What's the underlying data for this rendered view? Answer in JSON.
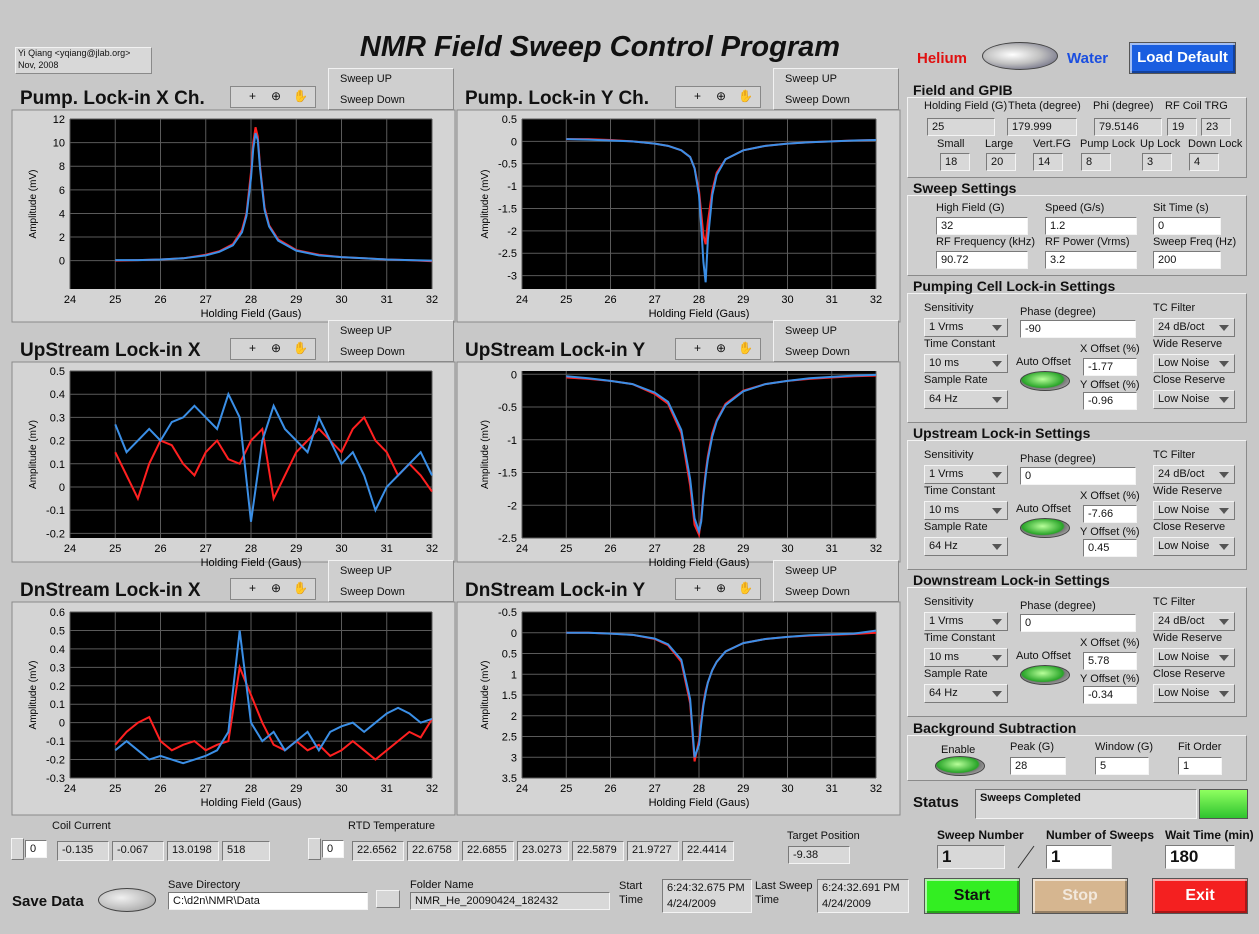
{
  "header": {
    "title": "NMR Field Sweep Control Program",
    "author": "Yi Qiang <yqiang@jlab.org>",
    "date": "Nov, 2008"
  },
  "mode": {
    "left": "Helium",
    "right": "Water",
    "load_default": "Load Default"
  },
  "plots": [
    {
      "type": "line",
      "title": "Pump. Lock-in X Ch.",
      "x_label": "Holding Field (Gaus)",
      "y_label": "Amplitude (mV)",
      "grid": true,
      "xlim": [
        24,
        32
      ],
      "xticks": [
        24,
        25,
        26,
        27,
        28,
        29,
        30,
        31,
        32
      ],
      "ylim": [
        -2.4,
        12
      ],
      "yticks": [
        0,
        2,
        4,
        6,
        8,
        10,
        12
      ],
      "x": [
        25,
        25.5,
        26,
        26.5,
        27,
        27.3,
        27.6,
        27.8,
        27.9,
        28,
        28.05,
        28.1,
        28.15,
        28.2,
        28.3,
        28.4,
        28.6,
        29,
        29.5,
        30,
        30.5,
        31,
        31.5,
        32
      ],
      "series": [
        {
          "name": "Sweep UP",
          "color": "#ff2020",
          "values": [
            0,
            0.05,
            0.1,
            0.2,
            0.5,
            0.8,
            1.4,
            2.6,
            4,
            7.5,
            10,
            11.3,
            10.5,
            8,
            4.5,
            3,
            1.8,
            0.9,
            0.5,
            0.3,
            0.2,
            0.1,
            0.05,
            -0.05
          ]
        },
        {
          "name": "Sweep Down",
          "color": "#3b8fe6",
          "values": [
            0.05,
            0.05,
            0.1,
            0.2,
            0.45,
            0.75,
            1.3,
            2.4,
            3.8,
            7,
            9.5,
            10.8,
            10.2,
            7.8,
            4.3,
            2.9,
            1.7,
            0.85,
            0.45,
            0.3,
            0.2,
            0.1,
            0.05,
            0
          ]
        }
      ]
    },
    {
      "type": "line",
      "title": "Pump. Lock-in Y Ch.",
      "x_label": "Holding Field (Gaus)",
      "y_label": "Amplitude (mV)",
      "grid": true,
      "xlim": [
        24,
        32
      ],
      "xticks": [
        24,
        25,
        26,
        27,
        28,
        29,
        30,
        31,
        32
      ],
      "ylim": [
        -3.3,
        0.5
      ],
      "yticks": [
        -3,
        -2.5,
        -2,
        -1.5,
        -1,
        -0.5,
        0,
        0.5
      ],
      "x": [
        25,
        25.5,
        26,
        26.5,
        27,
        27.3,
        27.6,
        27.8,
        27.9,
        28,
        28.05,
        28.1,
        28.15,
        28.2,
        28.3,
        28.4,
        28.6,
        29,
        29.5,
        30,
        30.5,
        31,
        31.5,
        32
      ],
      "series": [
        {
          "name": "Sweep UP",
          "color": "#ff2020",
          "values": [
            0.05,
            0.05,
            0.03,
            0,
            -0.05,
            -0.1,
            -0.2,
            -0.35,
            -0.6,
            -1.1,
            -1.6,
            -2.1,
            -2.3,
            -1.8,
            -1.1,
            -0.7,
            -0.4,
            -0.2,
            -0.1,
            -0.05,
            -0.02,
            0,
            0.02,
            0.03
          ]
        },
        {
          "name": "Sweep Down",
          "color": "#3b8fe6",
          "values": [
            0.05,
            0.04,
            0.02,
            0,
            -0.05,
            -0.1,
            -0.2,
            -0.35,
            -0.6,
            -1.2,
            -1.9,
            -2.7,
            -3.15,
            -2.2,
            -1.2,
            -0.75,
            -0.4,
            -0.2,
            -0.1,
            -0.05,
            -0.02,
            0,
            0.02,
            0.03
          ]
        }
      ]
    },
    {
      "type": "line",
      "title": "UpStream Lock-in X",
      "x_label": "Holding Field (Gaus)",
      "y_label": "Amplitude (mV)",
      "grid": true,
      "xlim": [
        24,
        32
      ],
      "xticks": [
        24,
        25,
        26,
        27,
        28,
        29,
        30,
        31,
        32
      ],
      "ylim": [
        -0.22,
        0.5
      ],
      "yticks": [
        -0.2,
        -0.1,
        0,
        0.1,
        0.2,
        0.3,
        0.4,
        0.5
      ],
      "x": [
        25,
        25.25,
        25.5,
        25.75,
        26,
        26.25,
        26.5,
        26.75,
        27,
        27.25,
        27.5,
        27.75,
        28,
        28.25,
        28.5,
        28.75,
        29,
        29.25,
        29.5,
        29.75,
        30,
        30.25,
        30.5,
        30.75,
        31,
        31.25,
        31.5,
        31.75,
        32
      ],
      "series": [
        {
          "name": "Sweep UP",
          "color": "#ff2020",
          "values": [
            0.15,
            0.05,
            -0.05,
            0.1,
            0.2,
            0.18,
            0.1,
            0.05,
            0.15,
            0.2,
            0.12,
            0.1,
            0.2,
            0.25,
            -0.05,
            0.05,
            0.15,
            0.2,
            0.25,
            0.2,
            0.15,
            0.25,
            0.3,
            0.2,
            0.15,
            0.05,
            0.1,
            0.05,
            -0.02
          ]
        },
        {
          "name": "Sweep Down",
          "color": "#3b8fe6",
          "values": [
            0.27,
            0.15,
            0.2,
            0.25,
            0.2,
            0.28,
            0.3,
            0.35,
            0.3,
            0.25,
            0.4,
            0.3,
            -0.15,
            0.2,
            0.35,
            0.25,
            0.2,
            0.15,
            0.3,
            0.2,
            0.1,
            0.15,
            0.05,
            -0.1,
            0,
            0.05,
            0.1,
            0.15,
            0.05
          ]
        }
      ]
    },
    {
      "type": "line",
      "title": "UpStream Lock-in Y",
      "x_label": "Holding Field (Gaus)",
      "y_label": "Amplitude (mV)",
      "grid": true,
      "xlim": [
        24,
        32
      ],
      "xticks": [
        24,
        25,
        26,
        27,
        28,
        29,
        30,
        31,
        32
      ],
      "ylim": [
        -2.5,
        0.05
      ],
      "yticks": [
        -2.5,
        -2,
        -1.5,
        -1,
        -0.5,
        0
      ],
      "x": [
        25,
        25.5,
        26,
        26.5,
        27,
        27.3,
        27.6,
        27.8,
        27.9,
        28,
        28.05,
        28.1,
        28.15,
        28.2,
        28.3,
        28.4,
        28.6,
        29,
        29.5,
        30,
        30.5,
        31,
        31.5,
        32
      ],
      "series": [
        {
          "name": "Sweep UP",
          "color": "#ff2020",
          "values": [
            -0.05,
            -0.07,
            -0.1,
            -0.15,
            -0.3,
            -0.45,
            -0.9,
            -1.7,
            -2.3,
            -2.45,
            -2.2,
            -1.8,
            -1.5,
            -1.25,
            -0.9,
            -0.7,
            -0.45,
            -0.25,
            -0.15,
            -0.1,
            -0.07,
            -0.05,
            -0.03,
            -0.02
          ]
        },
        {
          "name": "Sweep Down",
          "color": "#3b8fe6",
          "values": [
            -0.03,
            -0.06,
            -0.1,
            -0.15,
            -0.28,
            -0.42,
            -0.85,
            -1.6,
            -2.2,
            -2.4,
            -2.25,
            -1.85,
            -1.55,
            -1.3,
            -0.95,
            -0.72,
            -0.47,
            -0.26,
            -0.15,
            -0.1,
            -0.06,
            -0.04,
            -0.02,
            -0.01
          ]
        }
      ]
    },
    {
      "type": "line",
      "title": "DnStream Lock-in X",
      "x_label": "Holding Field (Gaus)",
      "y_label": "Amplitude (mV)",
      "grid": true,
      "xlim": [
        24,
        32
      ],
      "xticks": [
        24,
        25,
        26,
        27,
        28,
        29,
        30,
        31,
        32
      ],
      "ylim": [
        -0.3,
        0.6
      ],
      "yticks": [
        -0.3,
        -0.2,
        -0.1,
        0,
        0.1,
        0.2,
        0.3,
        0.4,
        0.5,
        0.6
      ],
      "x": [
        25,
        25.25,
        25.5,
        25.75,
        26,
        26.25,
        26.5,
        26.75,
        27,
        27.25,
        27.5,
        27.75,
        28,
        28.25,
        28.5,
        28.75,
        29,
        29.25,
        29.5,
        29.75,
        30,
        30.25,
        30.5,
        30.75,
        31,
        31.25,
        31.5,
        31.75,
        32
      ],
      "series": [
        {
          "name": "Sweep UP",
          "color": "#ff2020",
          "values": [
            -0.12,
            -0.05,
            0,
            0.03,
            -0.1,
            -0.15,
            -0.12,
            -0.1,
            -0.15,
            -0.12,
            -0.1,
            0.3,
            0.15,
            0,
            -0.12,
            -0.15,
            -0.1,
            -0.15,
            -0.12,
            -0.18,
            -0.15,
            -0.1,
            -0.15,
            -0.2,
            -0.15,
            -0.1,
            -0.05,
            -0.08,
            0.02
          ]
        },
        {
          "name": "Sweep Down",
          "color": "#3b8fe6",
          "values": [
            -0.15,
            -0.1,
            -0.15,
            -0.2,
            -0.18,
            -0.2,
            -0.22,
            -0.2,
            -0.18,
            -0.15,
            -0.05,
            0.5,
            0,
            -0.1,
            -0.05,
            -0.15,
            -0.1,
            -0.05,
            -0.15,
            -0.05,
            -0.02,
            0,
            -0.05,
            0,
            0.05,
            0.08,
            0.05,
            0,
            0.02
          ]
        }
      ]
    },
    {
      "type": "line",
      "title": "DnStream Lock-in Y",
      "x_label": "Holding Field (Gaus)",
      "y_label": "Amplitude (mV)",
      "grid": true,
      "xlim": [
        24,
        32
      ],
      "xticks": [
        24,
        25,
        26,
        27,
        28,
        29,
        30,
        31,
        32
      ],
      "ylim": [
        3.5,
        -0.5
      ],
      "yticks": [
        -0.5,
        0,
        0.5,
        1,
        1.5,
        2,
        2.5,
        3,
        3.5
      ],
      "x": [
        25,
        25.5,
        26,
        26.5,
        27,
        27.3,
        27.6,
        27.8,
        27.9,
        28,
        28.05,
        28.1,
        28.15,
        28.2,
        28.3,
        28.4,
        28.6,
        29,
        29.5,
        30,
        30.5,
        31,
        31.5,
        32
      ],
      "series": [
        {
          "name": "Sweep UP",
          "color": "#ff2020",
          "values": [
            0,
            0,
            0.02,
            0.05,
            0.15,
            0.3,
            0.7,
            1.7,
            3.1,
            2.6,
            2.1,
            1.7,
            1.4,
            1.2,
            0.9,
            0.7,
            0.45,
            0.25,
            0.15,
            0.1,
            0.07,
            0.05,
            0.03,
            0
          ]
        },
        {
          "name": "Sweep Down",
          "color": "#3b8fe6",
          "values": [
            0,
            0,
            0.02,
            0.05,
            0.14,
            0.28,
            0.65,
            1.6,
            3,
            2.7,
            2.2,
            1.75,
            1.45,
            1.2,
            0.9,
            0.7,
            0.45,
            0.25,
            0.15,
            0.1,
            0.06,
            0.04,
            0.02,
            -0.05
          ]
        }
      ]
    }
  ],
  "field_gpib": {
    "title": "Field and GPIB",
    "fields": [
      {
        "label": "Holding Field (G)",
        "value": "25"
      },
      {
        "label": "Theta (degree)",
        "value": "179.999"
      },
      {
        "label": "Phi (degree)",
        "value": "79.5146"
      },
      {
        "label": "Small",
        "value": "18"
      },
      {
        "label": "Large",
        "value": "20"
      },
      {
        "label": "Vert.FG",
        "value": "14"
      },
      {
        "label": "Pump Lock",
        "value": "8"
      },
      {
        "label": "Up Lock",
        "value": "3"
      },
      {
        "label": "Down Lock",
        "value": "4"
      }
    ],
    "rf_coil": {
      "label": "RF Coil TRG",
      "values": [
        "19",
        "23"
      ]
    }
  },
  "sweep_settings": {
    "title": "Sweep Settings",
    "fields": [
      {
        "label": "High Field (G)",
        "value": "32"
      },
      {
        "label": "Speed (G/s)",
        "value": "1.2"
      },
      {
        "label": "Sit Time (s)",
        "value": "0"
      },
      {
        "label": "RF Frequency (kHz)",
        "value": "90.72"
      },
      {
        "label": "RF Power (Vrms)",
        "value": "3.2"
      },
      {
        "label": "Sweep Freq (Hz)",
        "value": "200"
      }
    ]
  },
  "lockins": [
    {
      "title": "Pumping Cell Lock-in Settings",
      "sensitivity": {
        "label": "Sensitivity",
        "value": "1 Vrms"
      },
      "time_constant": {
        "label": "Time Constant",
        "value": "10 ms"
      },
      "sample_rate": {
        "label": "Sample Rate",
        "value": "64 Hz"
      },
      "phase": {
        "label": "Phase (degree)",
        "value": "-90"
      },
      "auto_offset": "Auto Offset",
      "x_offset": {
        "label": "X Offset (%)",
        "value": "-1.77"
      },
      "y_offset": {
        "label": "Y Offset (%)",
        "value": "-0.96"
      },
      "tc_filter": {
        "label": "TC Filter",
        "value": "24 dB/oct"
      },
      "wide_reserve": {
        "label": "Wide Reserve",
        "value": "Low Noise"
      },
      "close_reserve": {
        "label": "Close Reserve",
        "value": "Low Noise"
      }
    },
    {
      "title": "Upstream Lock-in Settings",
      "sensitivity": {
        "label": "Sensitivity",
        "value": "1 Vrms"
      },
      "time_constant": {
        "label": "Time Constant",
        "value": "10 ms"
      },
      "sample_rate": {
        "label": "Sample Rate",
        "value": "64 Hz"
      },
      "phase": {
        "label": "Phase (degree)",
        "value": "0"
      },
      "auto_offset": "Auto Offset",
      "x_offset": {
        "label": "X Offset (%)",
        "value": "-7.66"
      },
      "y_offset": {
        "label": "Y Offset (%)",
        "value": "0.45"
      },
      "tc_filter": {
        "label": "TC Filter",
        "value": "24 dB/oct"
      },
      "wide_reserve": {
        "label": "Wide Reserve",
        "value": "Low Noise"
      },
      "close_reserve": {
        "label": "Close Reserve",
        "value": "Low Noise"
      }
    },
    {
      "title": "Downstream Lock-in Settings",
      "sensitivity": {
        "label": "Sensitivity",
        "value": "1 Vrms"
      },
      "time_constant": {
        "label": "Time Constant",
        "value": "10 ms"
      },
      "sample_rate": {
        "label": "Sample Rate",
        "value": "64 Hz"
      },
      "phase": {
        "label": "Phase (degree)",
        "value": "0"
      },
      "auto_offset": "Auto Offset",
      "x_offset": {
        "label": "X Offset (%)",
        "value": "5.78"
      },
      "y_offset": {
        "label": "Y Offset (%)",
        "value": "-0.34"
      },
      "tc_filter": {
        "label": "TC Filter",
        "value": "24 dB/oct"
      },
      "wide_reserve": {
        "label": "Wide Reserve",
        "value": "Low Noise"
      },
      "close_reserve": {
        "label": "Close Reserve",
        "value": "Low Noise"
      }
    }
  ],
  "background": {
    "title": "Background Subtraction",
    "enable": "Enable",
    "fields": [
      {
        "label": "Peak (G)",
        "value": "28"
      },
      {
        "label": "Window (G)",
        "value": "5"
      },
      {
        "label": "Fit Order",
        "value": "1"
      }
    ]
  },
  "status": {
    "label": "Status",
    "value": "Sweeps Completed"
  },
  "sweep": {
    "sweep_number": {
      "label": "Sweep Number",
      "value": "1"
    },
    "number_of_sweeps": {
      "label": "Number of Sweeps",
      "value": "1"
    },
    "wait_time": {
      "label": "Wait Time (min)",
      "value": "180"
    }
  },
  "buttons": {
    "start": "Start",
    "stop": "Stop",
    "exit": "Exit"
  },
  "coil_current": {
    "label": "Coil Current",
    "index": "0",
    "values": [
      "-0.135",
      "-0.067",
      "13.0198",
      "518"
    ]
  },
  "rtd_temperature": {
    "label": "RTD Temperature",
    "index": "0",
    "values": [
      "22.6562",
      "22.6758",
      "22.6855",
      "23.0273",
      "22.5879",
      "21.9727",
      "22.4414"
    ]
  },
  "target_position": {
    "label": "Target Position",
    "value": "-9.38"
  },
  "save": {
    "label": "Save Data",
    "directory": {
      "label": "Save Directory",
      "value": "C:\\d2n\\NMR\\Data"
    },
    "folder": {
      "label": "Folder Name",
      "value": "NMR_He_20090424_182432"
    },
    "start_time": {
      "label": "Start Time",
      "value": "6:24:32.675 PM 4/24/2009"
    },
    "last_sweep_time": {
      "label": "Last Sweep Time",
      "value": "6:24:32.691 PM 4/24/2009"
    }
  }
}
